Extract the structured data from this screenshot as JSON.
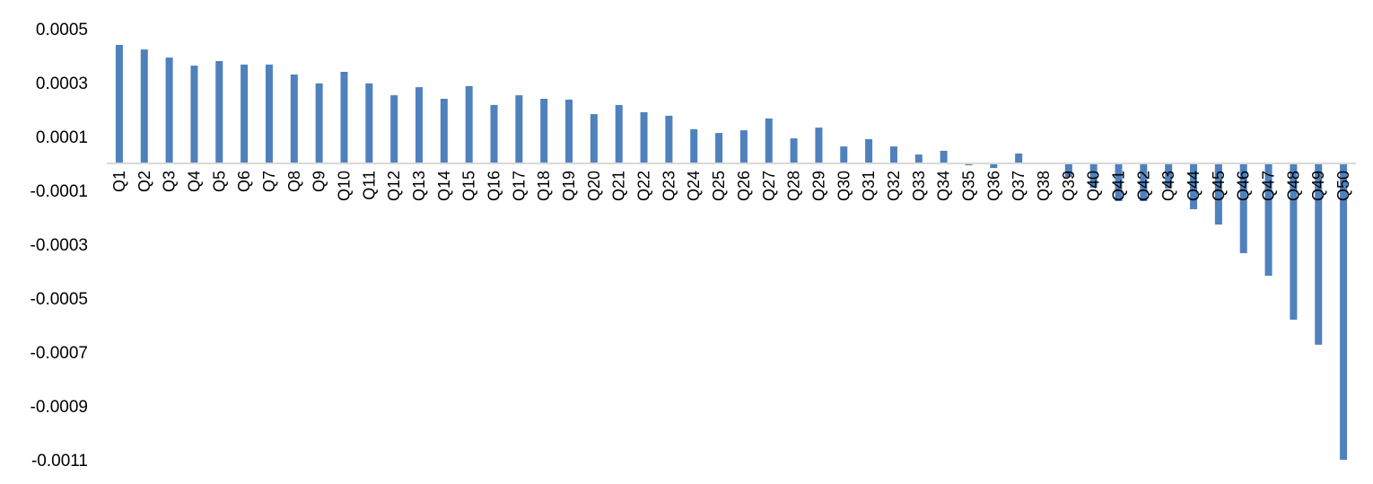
{
  "chart_data": {
    "type": "bar",
    "title": "",
    "xlabel": "",
    "ylabel": "",
    "ylim": [
      -0.0011,
      0.0005
    ],
    "yticks": [
      "0.0005",
      "0.0003",
      "0.0001",
      "-0.0001",
      "-0.0003",
      "-0.0005",
      "-0.0007",
      "-0.0009",
      "-0.0011"
    ],
    "ytick_values": [
      0.0005,
      0.0003,
      0.0001,
      -0.0001,
      -0.0003,
      -0.0005,
      -0.0007,
      -0.0009,
      -0.0011
    ],
    "grid": false,
    "bar_color": "#4f81bd",
    "axis_color": "#d9d9d9",
    "categories": [
      "Q1",
      "Q2",
      "Q3",
      "Q4",
      "Q5",
      "Q6",
      "Q7",
      "Q8",
      "Q9",
      "Q10",
      "Q11",
      "Q12",
      "Q13",
      "Q14",
      "Q15",
      "Q16",
      "Q17",
      "Q18",
      "Q19",
      "Q20",
      "Q21",
      "Q22",
      "Q23",
      "Q24",
      "Q25",
      "Q26",
      "Q27",
      "Q28",
      "Q29",
      "Q30",
      "Q31",
      "Q32",
      "Q33",
      "Q34",
      "Q35",
      "Q36",
      "Q37",
      "Q38",
      "Q39",
      "Q40",
      "Q41",
      "Q42",
      "Q43",
      "Q44",
      "Q45",
      "Q46",
      "Q47",
      "Q48",
      "Q49",
      "Q50"
    ],
    "values": [
      0.00044,
      0.000423,
      0.000393,
      0.000363,
      0.00038,
      0.000367,
      0.000367,
      0.00033,
      0.000297,
      0.00034,
      0.000297,
      0.000253,
      0.000283,
      0.00024,
      0.000287,
      0.000217,
      0.000253,
      0.00024,
      0.000237,
      0.000183,
      0.000217,
      0.00019,
      0.000177,
      0.000127,
      0.000113,
      0.000123,
      0.000167,
      9.3e-05,
      0.000133,
      6.3e-05,
      9e-05,
      6.3e-05,
      3.3e-05,
      4.7e-05,
      -7e-06,
      -1.7e-05,
      3.7e-05,
      -3e-06,
      -5e-05,
      -9e-05,
      -0.00014,
      -0.00014,
      -9.3e-05,
      -0.00017,
      -0.000227,
      -0.000333,
      -0.000417,
      -0.00058,
      -0.000673,
      -0.0011
    ]
  }
}
